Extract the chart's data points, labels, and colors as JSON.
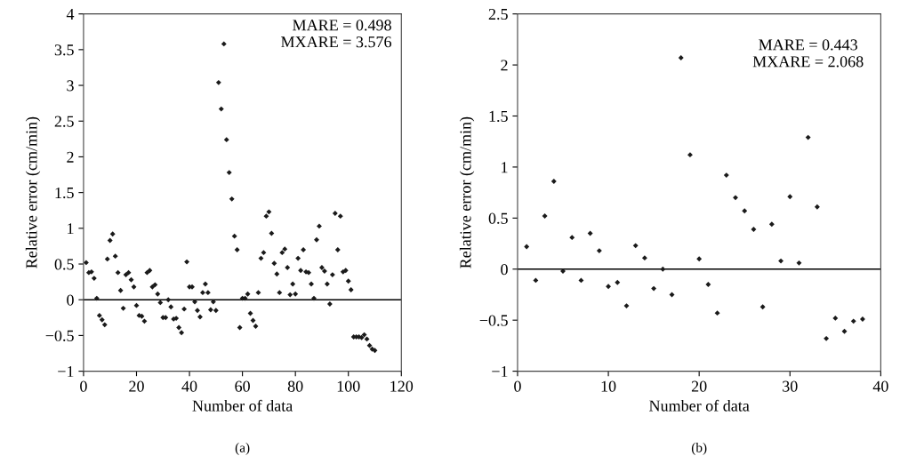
{
  "chart_data": [
    {
      "type": "scatter",
      "xlabel": "Number of data",
      "ylabel": "Relative error (cm/min)",
      "annotations": [
        "MARE = 0.498\nMXARE = 3.576",
        "(a)"
      ],
      "x": [
        1,
        2,
        3,
        4,
        5,
        6,
        7,
        8,
        9,
        10,
        11,
        12,
        13,
        14,
        15,
        16,
        17,
        18,
        19,
        20,
        21,
        22,
        23,
        24,
        25,
        26,
        27,
        28,
        29,
        30,
        31,
        32,
        33,
        34,
        35,
        36,
        37,
        38,
        39,
        40,
        41,
        42,
        43,
        44,
        45,
        46,
        47,
        48,
        49,
        50,
        51,
        52,
        53,
        54,
        55,
        56,
        57,
        58,
        59,
        60,
        61,
        62,
        63,
        64,
        65,
        66,
        67,
        68,
        69,
        70,
        71,
        72,
        73,
        74,
        75,
        76,
        77,
        78,
        79,
        80,
        81,
        82,
        83,
        84,
        85,
        86,
        87,
        88,
        89,
        90,
        91,
        92,
        93,
        94,
        95,
        96,
        97,
        98,
        99,
        100,
        101,
        102,
        103,
        104,
        105,
        106,
        107,
        108,
        109,
        110
      ],
      "series": [
        {
          "color": "#1a1a1a",
          "values": [
            0.52,
            0.38,
            0.39,
            0.3,
            0.02,
            -0.22,
            -0.28,
            -0.35,
            0.57,
            0.83,
            0.92,
            0.61,
            0.38,
            0.13,
            -0.12,
            0.35,
            0.38,
            0.28,
            0.18,
            -0.08,
            -0.22,
            -0.23,
            -0.3,
            0.38,
            0.41,
            0.18,
            0.21,
            0.08,
            -0.04,
            -0.25,
            -0.25,
            0.0,
            -0.1,
            -0.27,
            -0.26,
            -0.39,
            -0.46,
            -0.13,
            0.53,
            0.18,
            0.18,
            -0.03,
            -0.15,
            -0.24,
            0.1,
            0.22,
            0.1,
            -0.14,
            -0.03,
            -0.15,
            3.04,
            2.67,
            3.58,
            2.24,
            1.78,
            1.41,
            0.89,
            0.7,
            -0.39,
            0.02,
            0.02,
            0.08,
            -0.19,
            -0.29,
            -0.37,
            0.1,
            0.58,
            0.66,
            1.17,
            1.23,
            0.93,
            0.51,
            0.36,
            0.1,
            0.66,
            0.71,
            0.45,
            0.07,
            0.22,
            0.08,
            0.58,
            0.41,
            0.7,
            0.39,
            0.38,
            0.22,
            0.02,
            0.84,
            1.03,
            0.45,
            0.4,
            0.22,
            -0.06,
            0.35,
            1.21,
            0.7,
            1.17,
            0.39,
            0.41,
            0.26,
            0.14,
            -0.52,
            -0.52,
            -0.52,
            -0.53,
            -0.49,
            -0.55,
            -0.64,
            -0.69,
            -0.71
          ]
        }
      ],
      "xlim": [
        0,
        120
      ],
      "xticks": [
        0,
        20,
        40,
        60,
        80,
        100,
        120
      ],
      "ylim": [
        -1,
        4
      ],
      "yticks": [
        -1,
        -0.5,
        0,
        0.5,
        1,
        1.5,
        2,
        2.5,
        3,
        3.5,
        4
      ],
      "ref_lines": [
        {
          "axis": "y",
          "value": 0,
          "color": "#000000"
        }
      ],
      "marker": "diamond",
      "grid": false,
      "legend": false
    },
    {
      "type": "scatter",
      "xlabel": "Number of data",
      "ylabel": "Relative error (cm/min)",
      "annotations": [
        "MARE = 0.443\nMXARE = 2.068",
        "(b)"
      ],
      "x": [
        1,
        2,
        3,
        4,
        5,
        6,
        7,
        8,
        9,
        10,
        11,
        12,
        13,
        14,
        15,
        16,
        17,
        18,
        19,
        20,
        21,
        22,
        23,
        24,
        25,
        26,
        27,
        28,
        29,
        30,
        31,
        32,
        33,
        34,
        35,
        36,
        37,
        38
      ],
      "series": [
        {
          "color": "#1a1a1a",
          "values": [
            0.22,
            -0.11,
            0.52,
            0.86,
            -0.02,
            0.31,
            -0.11,
            0.35,
            0.18,
            -0.17,
            -0.13,
            -0.36,
            0.23,
            0.11,
            -0.19,
            0.0,
            -0.25,
            2.07,
            1.12,
            0.1,
            -0.15,
            -0.43,
            0.92,
            0.7,
            0.57,
            0.39,
            -0.37,
            0.44,
            0.08,
            0.71,
            0.06,
            1.29,
            0.61,
            -0.68,
            -0.48,
            -0.61,
            -0.51,
            -0.49
          ]
        }
      ],
      "xlim": [
        0,
        40
      ],
      "xticks": [
        0,
        10,
        20,
        30,
        40
      ],
      "ylim": [
        -1,
        2.5
      ],
      "yticks": [
        -1,
        -0.5,
        0,
        0.5,
        1,
        1.5,
        2,
        2.5
      ],
      "ref_lines": [
        {
          "axis": "y",
          "value": 0,
          "color": "#000000"
        }
      ],
      "marker": "diamond",
      "grid": false,
      "legend": false
    }
  ]
}
